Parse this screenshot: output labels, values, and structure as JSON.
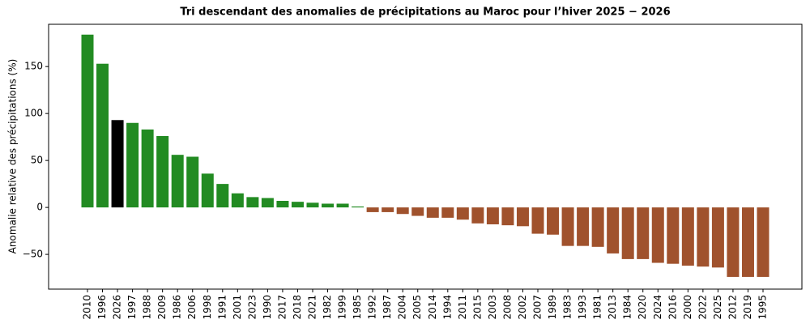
{
  "chart_data": {
    "type": "bar",
    "title": "Tri descendant des anomalies de précipitations au Maroc pour l’hiver 2025 − 2026",
    "y_label": "Anomalie relative des précipitations (%)",
    "categories": [
      "2010",
      "1996",
      "2026",
      "1997",
      "1988",
      "2009",
      "1986",
      "2006",
      "1998",
      "1991",
      "2001",
      "2023",
      "1990",
      "2017",
      "2018",
      "2021",
      "1982",
      "1999",
      "1985",
      "1992",
      "1987",
      "2004",
      "2005",
      "2014",
      "1994",
      "2011",
      "2015",
      "2003",
      "2008",
      "2002",
      "2007",
      "1989",
      "1983",
      "1993",
      "1981",
      "2013",
      "1984",
      "2020",
      "2024",
      "2016",
      "2000",
      "2022",
      "2025",
      "2012",
      "2019",
      "1995"
    ],
    "values": [
      184,
      153,
      93,
      90,
      83,
      76,
      56,
      54,
      36,
      25,
      15,
      11,
      10,
      7,
      6,
      5,
      4,
      4,
      1,
      -5,
      -5,
      -7,
      -9,
      -11,
      -11,
      -13,
      -17,
      -18,
      -19,
      -20,
      -28,
      -29,
      -41,
      -41,
      -42,
      -49,
      -55,
      -55,
      -59,
      -60,
      -62,
      -63,
      -64,
      -74,
      -74,
      -74
    ],
    "colors": [
      "#228b22",
      "#228b22",
      "#000000",
      "#228b22",
      "#228b22",
      "#228b22",
      "#228b22",
      "#228b22",
      "#228b22",
      "#228b22",
      "#228b22",
      "#228b22",
      "#228b22",
      "#228b22",
      "#228b22",
      "#228b22",
      "#228b22",
      "#228b22",
      "#228b22",
      "#a0522d",
      "#a0522d",
      "#a0522d",
      "#a0522d",
      "#a0522d",
      "#a0522d",
      "#a0522d",
      "#a0522d",
      "#a0522d",
      "#a0522d",
      "#a0522d",
      "#a0522d",
      "#a0522d",
      "#a0522d",
      "#a0522d",
      "#a0522d",
      "#a0522d",
      "#a0522d",
      "#a0522d",
      "#a0522d",
      "#a0522d",
      "#a0522d",
      "#a0522d",
      "#a0522d",
      "#a0522d",
      "#a0522d",
      "#a0522d"
    ],
    "ylim": [
      -87,
      195
    ],
    "yticks": [
      {
        "value": -50,
        "label": "−50"
      },
      0,
      50,
      100,
      150
    ],
    "grid": false
  }
}
